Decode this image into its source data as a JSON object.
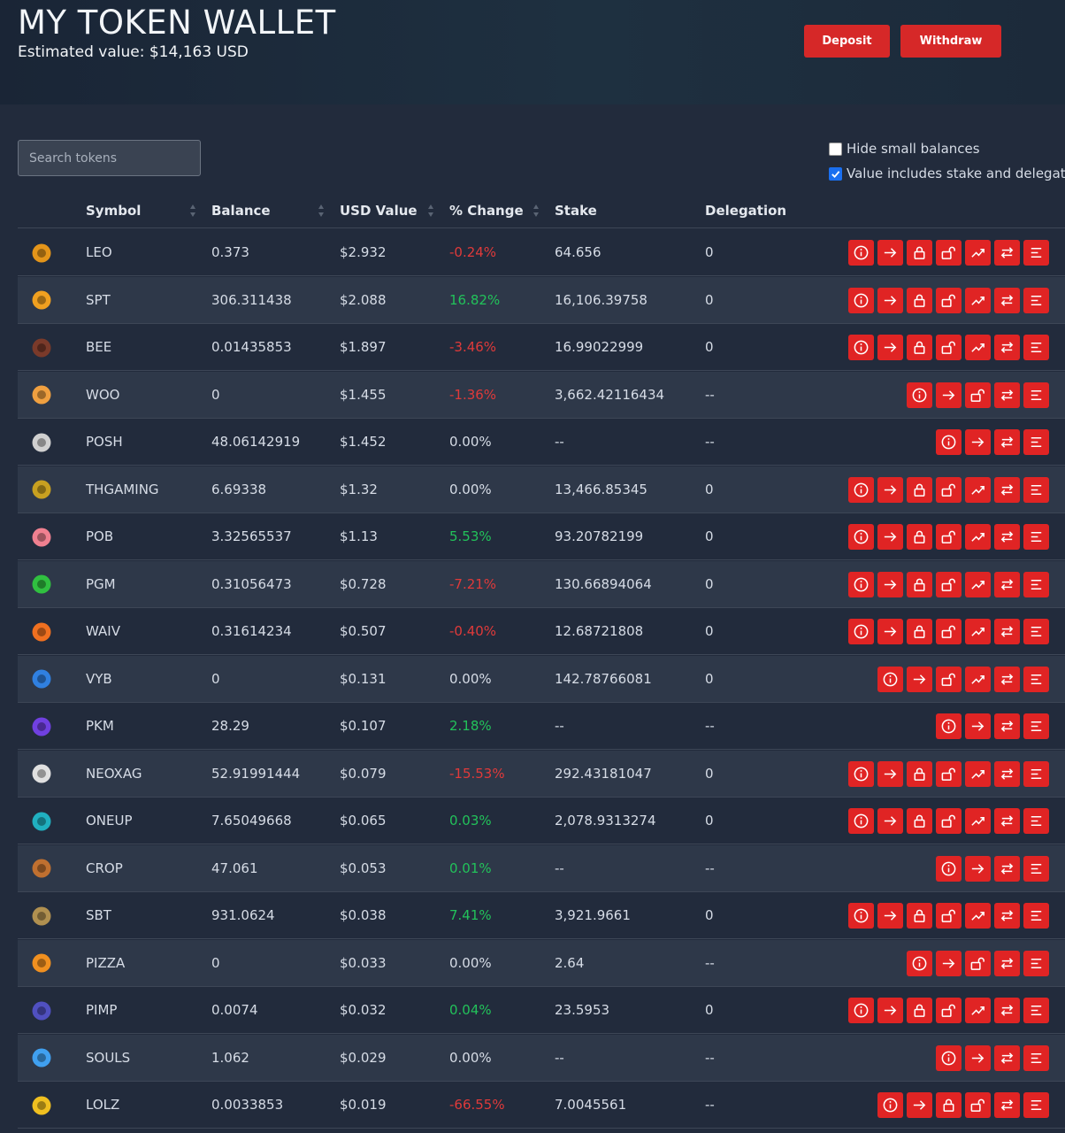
{
  "header": {
    "title": "MY TOKEN WALLET",
    "estimated_value": "Estimated value: $14,163 USD",
    "deposit_label": "Deposit",
    "withdraw_label": "Withdraw"
  },
  "search": {
    "placeholder": "Search tokens",
    "value": ""
  },
  "options": {
    "hide_small": {
      "label": "Hide small balances",
      "checked": false
    },
    "include_stake": {
      "label": "Value includes stake and delegated",
      "checked": true
    }
  },
  "columns": [
    "Symbol",
    "Balance",
    "USD Value",
    "% Change",
    "Stake",
    "Delegation"
  ],
  "colors": {
    "accent": "#e02424",
    "positive": "#22c25a",
    "negative": "#e03a3a",
    "background": "#222b3c",
    "row_alt": "#2e3849"
  },
  "tokens": [
    {
      "symbol": "LEO",
      "balance": "0.373",
      "usd": "$2.932",
      "change": "-0.24%",
      "stake": "64.656",
      "delegation": "0",
      "actions": [
        "info",
        "transfer",
        "stake",
        "unstake",
        "delegate",
        "swap",
        "history"
      ],
      "logo_color": "#e4951a"
    },
    {
      "symbol": "SPT",
      "balance": "306.311438",
      "usd": "$2.088",
      "change": "16.82%",
      "stake": "16,106.39758",
      "delegation": "0",
      "actions": [
        "info",
        "transfer",
        "stake",
        "unstake",
        "delegate",
        "swap",
        "history"
      ],
      "logo_color": "#f0a020"
    },
    {
      "symbol": "BEE",
      "balance": "0.01435853",
      "usd": "$1.897",
      "change": "-3.46%",
      "stake": "16.99022999",
      "delegation": "0",
      "actions": [
        "info",
        "transfer",
        "stake",
        "unstake",
        "delegate",
        "swap",
        "history"
      ],
      "logo_color": "#7a3a2a"
    },
    {
      "symbol": "WOO",
      "balance": "0",
      "usd": "$1.455",
      "change": "-1.36%",
      "stake": "3,662.42116434",
      "delegation": "--",
      "actions": [
        "info",
        "transfer",
        "unstake",
        "swap",
        "history"
      ],
      "logo_color": "#f0a040"
    },
    {
      "symbol": "POSH",
      "balance": "48.06142919",
      "usd": "$1.452",
      "change": "0.00%",
      "stake": "--",
      "delegation": "--",
      "actions": [
        "info",
        "transfer",
        "swap",
        "history"
      ],
      "logo_color": "#d0d0d0"
    },
    {
      "symbol": "THGAMING",
      "balance": "6.69338",
      "usd": "$1.32",
      "change": "0.00%",
      "stake": "13,466.85345",
      "delegation": "0",
      "actions": [
        "info",
        "transfer",
        "stake",
        "unstake",
        "delegate",
        "swap",
        "history"
      ],
      "logo_color": "#c8a020"
    },
    {
      "symbol": "POB",
      "balance": "3.32565537",
      "usd": "$1.13",
      "change": "5.53%",
      "stake": "93.20782199",
      "delegation": "0",
      "actions": [
        "info",
        "transfer",
        "stake",
        "unstake",
        "delegate",
        "swap",
        "history"
      ],
      "logo_color": "#f08090"
    },
    {
      "symbol": "PGM",
      "balance": "0.31056473",
      "usd": "$0.728",
      "change": "-7.21%",
      "stake": "130.66894064",
      "delegation": "0",
      "actions": [
        "info",
        "transfer",
        "stake",
        "unstake",
        "delegate",
        "swap",
        "history"
      ],
      "logo_color": "#30c040"
    },
    {
      "symbol": "WAIV",
      "balance": "0.31614234",
      "usd": "$0.507",
      "change": "-0.40%",
      "stake": "12.68721808",
      "delegation": "0",
      "actions": [
        "info",
        "transfer",
        "stake",
        "unstake",
        "delegate",
        "swap",
        "history"
      ],
      "logo_color": "#f07020"
    },
    {
      "symbol": "VYB",
      "balance": "0",
      "usd": "$0.131",
      "change": "0.00%",
      "stake": "142.78766081",
      "delegation": "0",
      "actions": [
        "info",
        "transfer",
        "unstake",
        "delegate",
        "swap",
        "history"
      ],
      "logo_color": "#3080e0"
    },
    {
      "symbol": "PKM",
      "balance": "28.29",
      "usd": "$0.107",
      "change": "2.18%",
      "stake": "--",
      "delegation": "--",
      "actions": [
        "info",
        "transfer",
        "swap",
        "history"
      ],
      "logo_color": "#7040e0"
    },
    {
      "symbol": "NEOXAG",
      "balance": "52.91991444",
      "usd": "$0.079",
      "change": "-15.53%",
      "stake": "292.43181047",
      "delegation": "0",
      "actions": [
        "info",
        "transfer",
        "stake",
        "unstake",
        "delegate",
        "swap",
        "history"
      ],
      "logo_color": "#e0e0e0"
    },
    {
      "symbol": "ONEUP",
      "balance": "7.65049668",
      "usd": "$0.065",
      "change": "0.03%",
      "stake": "2,078.9313274",
      "delegation": "0",
      "actions": [
        "info",
        "transfer",
        "stake",
        "unstake",
        "delegate",
        "swap",
        "history"
      ],
      "logo_color": "#20b0c0"
    },
    {
      "symbol": "CROP",
      "balance": "47.061",
      "usd": "$0.053",
      "change": "0.01%",
      "stake": "--",
      "delegation": "--",
      "actions": [
        "info",
        "transfer",
        "swap",
        "history"
      ],
      "logo_color": "#c07030"
    },
    {
      "symbol": "SBT",
      "balance": "931.0624",
      "usd": "$0.038",
      "change": "7.41%",
      "stake": "3,921.9661",
      "delegation": "0",
      "actions": [
        "info",
        "transfer",
        "stake",
        "unstake",
        "delegate",
        "swap",
        "history"
      ],
      "logo_color": "#b09050"
    },
    {
      "symbol": "PIZZA",
      "balance": "0",
      "usd": "$0.033",
      "change": "0.00%",
      "stake": "2.64",
      "delegation": "--",
      "actions": [
        "info",
        "transfer",
        "unstake",
        "swap",
        "history"
      ],
      "logo_color": "#f09020"
    },
    {
      "symbol": "PIMP",
      "balance": "0.0074",
      "usd": "$0.032",
      "change": "0.04%",
      "stake": "23.5953",
      "delegation": "0",
      "actions": [
        "info",
        "transfer",
        "stake",
        "unstake",
        "delegate",
        "swap",
        "history"
      ],
      "logo_color": "#5050c0"
    },
    {
      "symbol": "SOULS",
      "balance": "1.062",
      "usd": "$0.029",
      "change": "0.00%",
      "stake": "--",
      "delegation": "--",
      "actions": [
        "info",
        "transfer",
        "swap",
        "history"
      ],
      "logo_color": "#40a0f0"
    },
    {
      "symbol": "LOLZ",
      "balance": "0.0033853",
      "usd": "$0.019",
      "change": "-66.55%",
      "stake": "7.0045561",
      "delegation": "--",
      "actions": [
        "info",
        "transfer",
        "stake",
        "unstake",
        "swap",
        "history"
      ],
      "logo_color": "#f0c020"
    }
  ]
}
